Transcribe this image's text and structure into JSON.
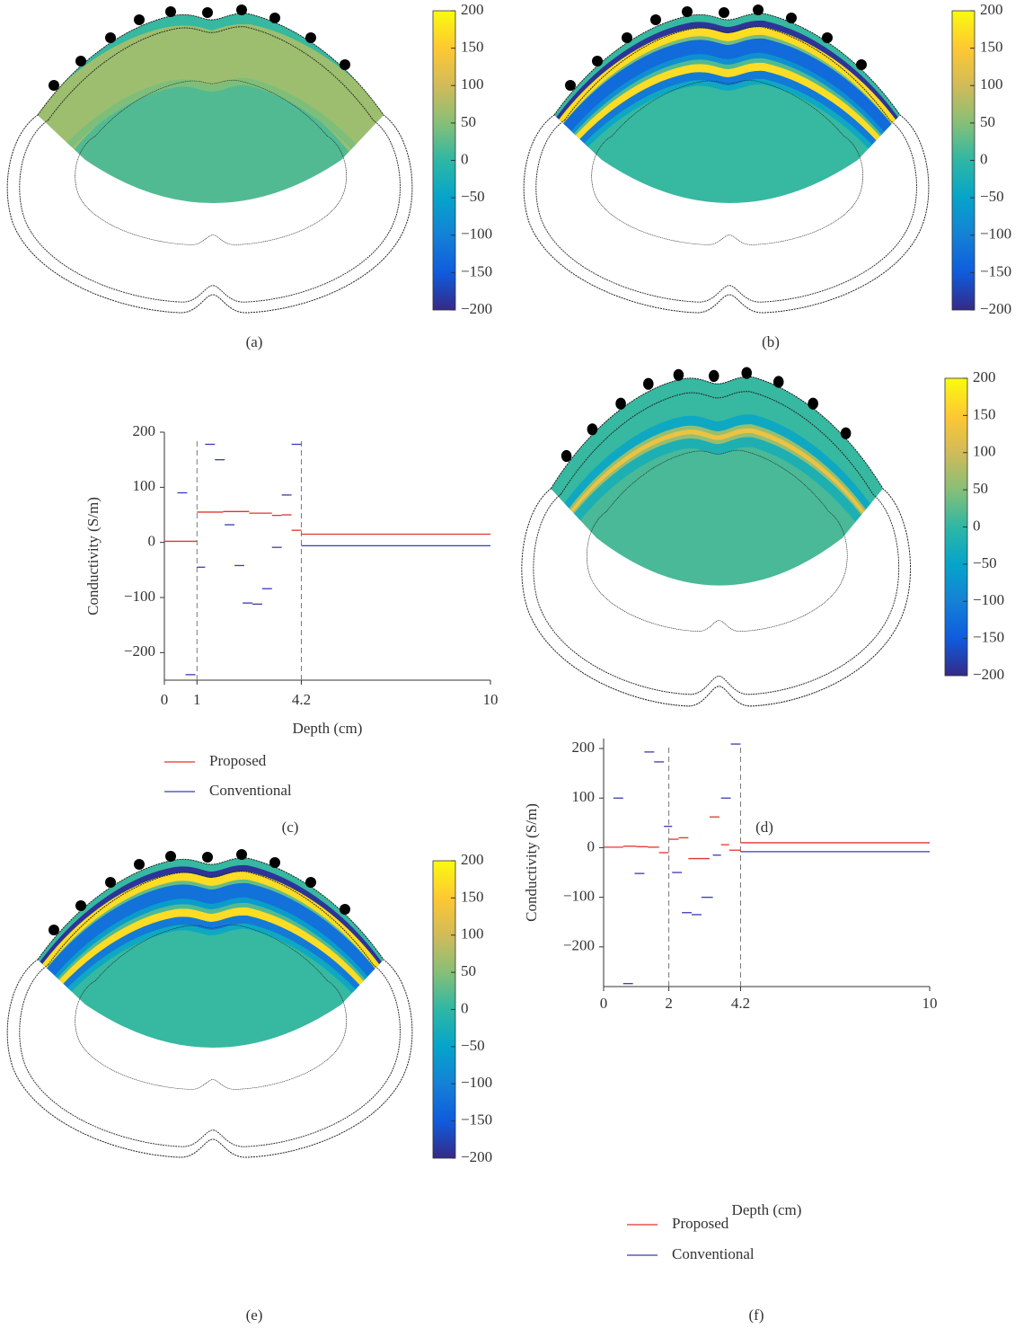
{
  "chart_data": [
    {
      "type": "heatmap",
      "panel_label": "(a)",
      "clim": [
        -200,
        200
      ],
      "cticks": [
        200,
        150,
        100,
        50,
        0,
        {
          "value": -50,
          "label": "−50"
        },
        {
          "value": -100,
          "label": "−100"
        },
        {
          "value": -150,
          "label": "−150"
        },
        {
          "value": -200,
          "label": "−200"
        }
      ],
      "bands": [
        5,
        65,
        45
      ],
      "interior": 20
    },
    {
      "type": "heatmap",
      "panel_label": "(b)",
      "clim": [
        -200,
        200
      ],
      "cticks": [
        200,
        150,
        100,
        50,
        0,
        {
          "value": -50,
          "label": "−50"
        },
        {
          "value": -100,
          "label": "−100"
        },
        {
          "value": -150,
          "label": "−150"
        },
        {
          "value": -200,
          "label": "−200"
        }
      ],
      "bands": [
        5,
        -190,
        170,
        40,
        -130,
        -80,
        20,
        170,
        -110,
        -40
      ],
      "interior": 5
    },
    {
      "type": "line",
      "panel_label": "(c)",
      "x_label": "Depth (cm)",
      "y_label": "Conductivity (S/m)",
      "xlim": [
        0,
        10
      ],
      "ylim": [
        -250,
        200
      ],
      "xticks": [
        0,
        1,
        4.2,
        10
      ],
      "yticks": [
        200,
        100,
        0,
        {
          "value": -100,
          "label": "−100"
        },
        {
          "value": -200,
          "label": "−200"
        }
      ],
      "vlines": [
        1,
        4.2
      ],
      "series": [
        {
          "name": "Proposed",
          "color": "#e0352b",
          "segments": [
            {
              "x": [
                0,
                1
              ],
              "value": 2
            },
            {
              "x": [
                1,
                1.8
              ],
              "value": 55
            },
            {
              "x": [
                1.8,
                2.6
              ],
              "value": 56
            },
            {
              "x": [
                2.6,
                3.3
              ],
              "value": 53
            },
            {
              "x": [
                3.3,
                3.6
              ],
              "value": 49
            },
            {
              "x": [
                3.6,
                3.9
              ],
              "value": 50
            },
            {
              "x": [
                3.9,
                4.2
              ],
              "value": 22
            },
            {
              "x": [
                4.2,
                10
              ],
              "value": 15
            }
          ]
        },
        {
          "name": "Conventional",
          "color": "#3a3ab0",
          "segments": [
            {
              "x": [
                0.4,
                0.7
              ],
              "value": 90
            },
            {
              "x": [
                0.65,
                0.95
              ],
              "value": -240
            },
            {
              "x": [
                1,
                1.25
              ],
              "value": -45
            },
            {
              "x": [
                1.25,
                1.55
              ],
              "value": 178
            },
            {
              "x": [
                1.55,
                1.85
              ],
              "value": 150
            },
            {
              "x": [
                1.85,
                2.15
              ],
              "value": 32
            },
            {
              "x": [
                2.15,
                2.45
              ],
              "value": -42
            },
            {
              "x": [
                2.4,
                2.7
              ],
              "value": -110
            },
            {
              "x": [
                2.7,
                3.0
              ],
              "value": -112
            },
            {
              "x": [
                3.0,
                3.3
              ],
              "value": -84
            },
            {
              "x": [
                3.3,
                3.6
              ],
              "value": -9
            },
            {
              "x": [
                3.6,
                3.9
              ],
              "value": 86
            },
            {
              "x": [
                3.9,
                4.2
              ],
              "value": 178
            },
            {
              "x": [
                4.2,
                10
              ],
              "value": -6
            }
          ]
        }
      ]
    },
    {
      "type": "heatmap",
      "panel_label": "(d)",
      "clim": [
        -200,
        200
      ],
      "cticks": [
        200,
        150,
        100,
        50,
        0,
        {
          "value": -50,
          "label": "−50"
        },
        {
          "value": -100,
          "label": "−100"
        },
        {
          "value": -150,
          "label": "−150"
        },
        {
          "value": -200,
          "label": "−200"
        }
      ],
      "bands": [
        5,
        -40,
        60,
        130,
        60,
        -20
      ],
      "interior": 15
    },
    {
      "type": "heatmap",
      "panel_label": "(e)",
      "clim": [
        -200,
        200
      ],
      "cticks": [
        200,
        150,
        100,
        50,
        0,
        {
          "value": -50,
          "label": "−50"
        },
        {
          "value": -100,
          "label": "−100"
        },
        {
          "value": -150,
          "label": "−150"
        },
        {
          "value": -200,
          "label": "−200"
        }
      ],
      "bands": [
        5,
        -190,
        170,
        30,
        -120,
        -60,
        20,
        170,
        -110,
        -40
      ],
      "interior": 5
    },
    {
      "type": "line",
      "panel_label": "(f)",
      "x_label": "Depth (cm)",
      "y_label": "Conductivity (S/m)",
      "xlim": [
        0,
        10
      ],
      "ylim": [
        -280,
        220
      ],
      "xticks": [
        0,
        2,
        4.2,
        10
      ],
      "yticks": [
        200,
        100,
        0,
        {
          "value": -100,
          "label": "−100"
        },
        {
          "value": -200,
          "label": "−200"
        }
      ],
      "vlines": [
        2,
        4.2
      ],
      "series": [
        {
          "name": "Proposed",
          "color": "#e0352b",
          "segments": [
            {
              "x": [
                0,
                0.6
              ],
              "value": 1
            },
            {
              "x": [
                0.6,
                1
              ],
              "value": 3
            },
            {
              "x": [
                1,
                1.35
              ],
              "value": 2
            },
            {
              "x": [
                1.35,
                1.7
              ],
              "value": 1
            },
            {
              "x": [
                1.7,
                2
              ],
              "value": -10
            },
            {
              "x": [
                2,
                2.3
              ],
              "value": 17
            },
            {
              "x": [
                2.3,
                2.6
              ],
              "value": 20
            },
            {
              "x": [
                2.6,
                3.25
              ],
              "value": -22
            },
            {
              "x": [
                3.25,
                3.55
              ],
              "value": 62
            },
            {
              "x": [
                3.6,
                3.85
              ],
              "value": 6
            },
            {
              "x": [
                3.85,
                4.2
              ],
              "value": -5
            },
            {
              "x": [
                4.2,
                10
              ],
              "value": 10
            }
          ]
        },
        {
          "name": "Conventional",
          "color": "#3a3ab0",
          "segments": [
            {
              "x": [
                0.3,
                0.6
              ],
              "value": 100
            },
            {
              "x": [
                0.6,
                0.9
              ],
              "value": -274
            },
            {
              "x": [
                0.95,
                1.25
              ],
              "value": -52
            },
            {
              "x": [
                1.25,
                1.55
              ],
              "value": 193
            },
            {
              "x": [
                1.55,
                1.85
              ],
              "value": 173
            },
            {
              "x": [
                1.85,
                2.1
              ],
              "value": 43
            },
            {
              "x": [
                2.1,
                2.4
              ],
              "value": -50
            },
            {
              "x": [
                2.4,
                2.7
              ],
              "value": -131
            },
            {
              "x": [
                2.7,
                3.0
              ],
              "value": -135
            },
            {
              "x": [
                3.0,
                3.35
              ],
              "value": -100
            },
            {
              "x": [
                3.35,
                3.6
              ],
              "value": -15
            },
            {
              "x": [
                3.6,
                3.9
              ],
              "value": 100
            },
            {
              "x": [
                3.9,
                4.2
              ],
              "value": 209
            },
            {
              "x": [
                4.2,
                10
              ],
              "value": -8
            }
          ]
        }
      ]
    }
  ]
}
